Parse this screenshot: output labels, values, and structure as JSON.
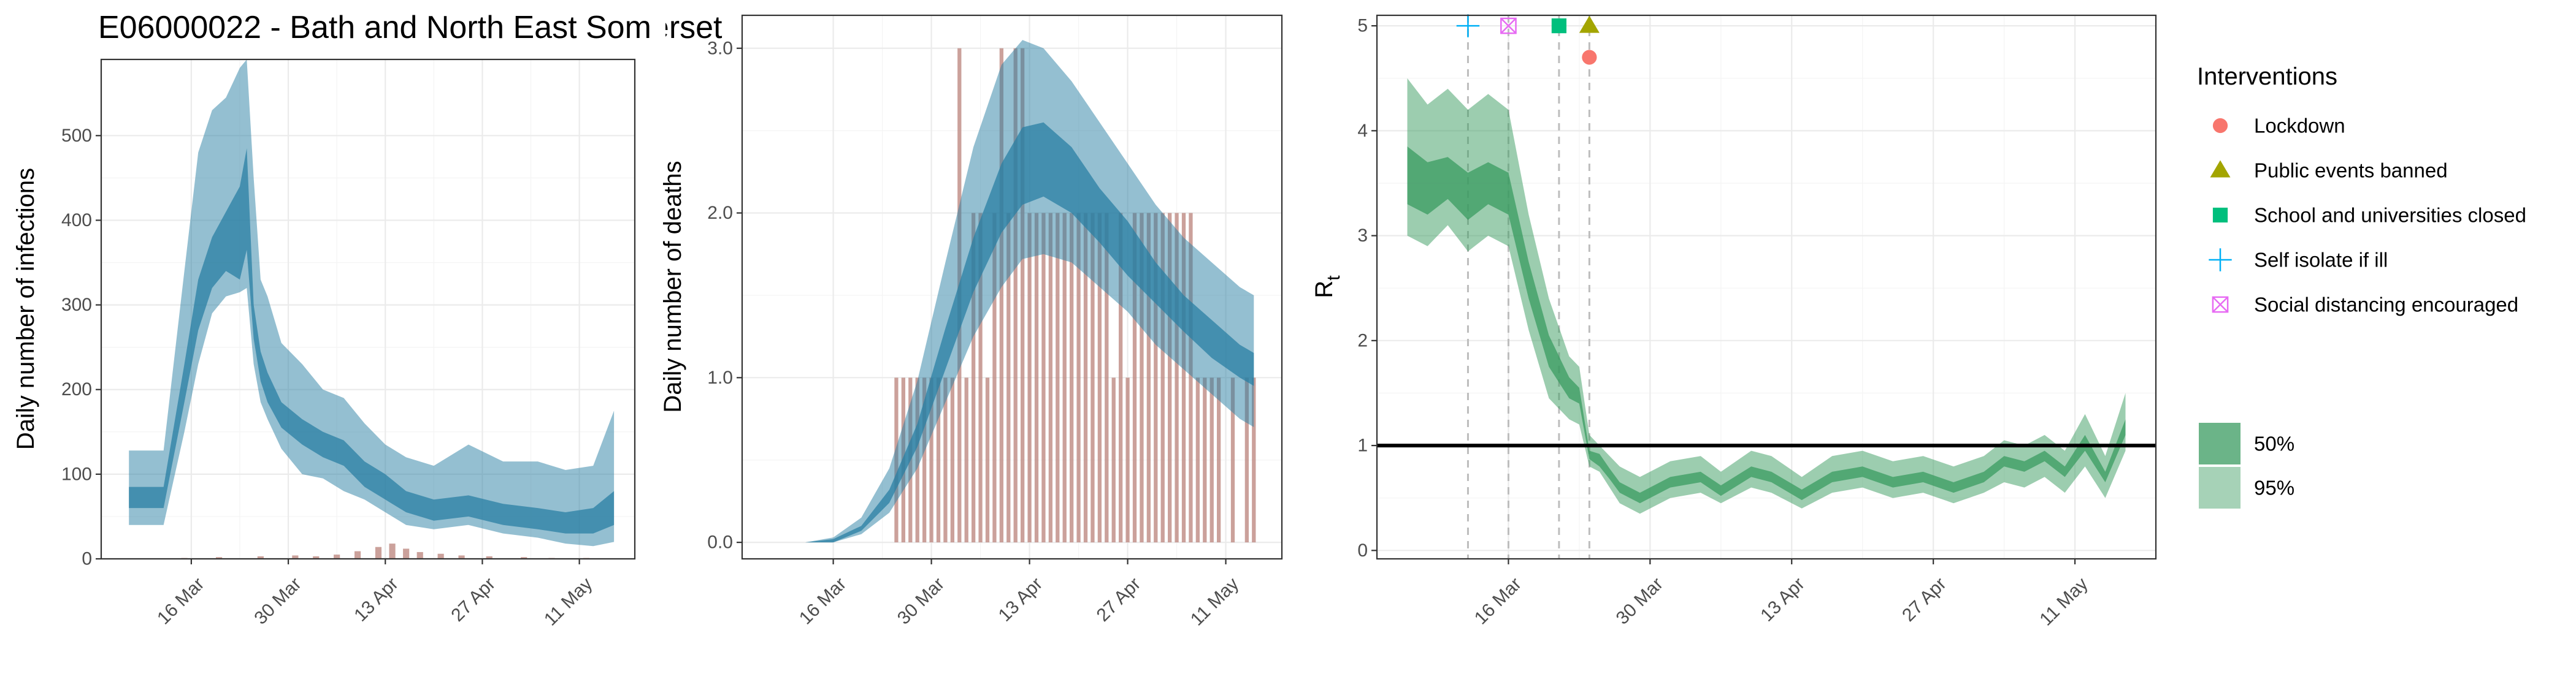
{
  "colors": {
    "infections_band": "#2a7fa3",
    "observed_bars": "#b9817a",
    "rt_band": "#3a9b60",
    "rt_threshold": "#000000",
    "lockdown": "#f8766d",
    "public_events": "#a3a500",
    "schools": "#00bf7d",
    "self_isolate": "#00b0f6",
    "social_distancing": "#e76bf3"
  },
  "chart_data": [
    {
      "type": "area",
      "title": "E06000022 - Bath and North East Somerset",
      "xlabel": "",
      "ylabel": "Daily number of infections",
      "x_axis": "date",
      "xlim": [
        "2020-03-03",
        "2020-05-19"
      ],
      "ylim": [
        0,
        590
      ],
      "xticks": [
        {
          "date": "2020-03-16",
          "label": "16 Mar"
        },
        {
          "date": "2020-03-30",
          "label": "30 Mar"
        },
        {
          "date": "2020-04-13",
          "label": "13 Apr"
        },
        {
          "date": "2020-04-27",
          "label": "27 Apr"
        },
        {
          "date": "2020-05-11",
          "label": "11 May"
        }
      ],
      "yticks": [
        0,
        100,
        200,
        300,
        400,
        500
      ],
      "ytick_labels": [
        "0",
        "100",
        "200",
        "300",
        "400",
        "500"
      ],
      "grid": true,
      "series": [
        {
          "kind": "band",
          "dates": [
            "2020-03-07",
            "2020-03-12",
            "2020-03-15",
            "2020-03-17",
            "2020-03-19",
            "2020-03-21",
            "2020-03-23",
            "2020-03-24",
            "2020-03-25",
            "2020-03-26",
            "2020-03-27",
            "2020-03-29",
            "2020-04-01",
            "2020-04-04",
            "2020-04-07",
            "2020-04-10",
            "2020-04-13",
            "2020-04-16",
            "2020-04-20",
            "2020-04-25",
            "2020-04-30",
            "2020-05-05",
            "2020-05-09",
            "2020-05-13",
            "2020-05-16"
          ],
          "upper_95": [
            128,
            128,
            340,
            480,
            530,
            545,
            580,
            590,
            450,
            330,
            310,
            255,
            230,
            200,
            190,
            160,
            135,
            120,
            110,
            135,
            115,
            115,
            105,
            110,
            175
          ],
          "lower_95": [
            40,
            40,
            150,
            230,
            290,
            310,
            315,
            320,
            230,
            185,
            165,
            130,
            100,
            95,
            80,
            70,
            55,
            40,
            35,
            40,
            30,
            25,
            18,
            15,
            20
          ],
          "upper_50": [
            85,
            85,
            230,
            330,
            380,
            410,
            440,
            485,
            300,
            245,
            220,
            185,
            165,
            150,
            140,
            115,
            100,
            80,
            70,
            75,
            65,
            60,
            55,
            60,
            80
          ],
          "lower_50": [
            60,
            60,
            185,
            270,
            320,
            340,
            330,
            365,
            260,
            210,
            185,
            155,
            135,
            120,
            110,
            85,
            70,
            55,
            45,
            50,
            40,
            35,
            30,
            30,
            40
          ]
        }
      ],
      "observed_cases": {
        "dates": [
          "2020-03-15",
          "2020-03-20",
          "2020-03-26",
          "2020-03-31",
          "2020-04-03",
          "2020-04-06",
          "2020-04-09",
          "2020-04-12",
          "2020-04-14",
          "2020-04-16",
          "2020-04-18",
          "2020-04-21",
          "2020-04-24",
          "2020-04-28",
          "2020-05-03",
          "2020-05-07",
          "2020-05-12"
        ],
        "values": [
          1,
          2,
          3,
          4,
          3,
          5,
          9,
          14,
          18,
          12,
          8,
          6,
          4,
          3,
          2,
          1,
          1
        ]
      }
    },
    {
      "type": "area",
      "title": "",
      "xlabel": "",
      "ylabel": "Daily number of deaths",
      "x_axis": "date",
      "xlim": [
        "2020-03-03",
        "2020-05-19"
      ],
      "ylim": [
        -0.1,
        3.2
      ],
      "xticks": [
        {
          "date": "2020-03-16",
          "label": "16 Mar"
        },
        {
          "date": "2020-03-30",
          "label": "30 Mar"
        },
        {
          "date": "2020-04-13",
          "label": "13 Apr"
        },
        {
          "date": "2020-04-27",
          "label": "27 Apr"
        },
        {
          "date": "2020-05-11",
          "label": "11 May"
        }
      ],
      "yticks": [
        0,
        1,
        2,
        3
      ],
      "ytick_labels": [
        "0.0",
        "1.0",
        "2.0",
        "3.0"
      ],
      "grid": true,
      "series": [
        {
          "kind": "band",
          "dates": [
            "2020-03-12",
            "2020-03-16",
            "2020-03-20",
            "2020-03-24",
            "2020-03-28",
            "2020-04-01",
            "2020-04-05",
            "2020-04-09",
            "2020-04-12",
            "2020-04-15",
            "2020-04-19",
            "2020-04-23",
            "2020-04-27",
            "2020-05-01",
            "2020-05-05",
            "2020-05-09",
            "2020-05-13",
            "2020-05-15"
          ],
          "upper_95": [
            0,
            0.03,
            0.15,
            0.45,
            0.98,
            1.7,
            2.4,
            2.9,
            3.05,
            3.0,
            2.8,
            2.55,
            2.3,
            2.05,
            1.85,
            1.7,
            1.55,
            1.5
          ],
          "lower_95": [
            0,
            0,
            0.05,
            0.18,
            0.45,
            0.85,
            1.25,
            1.55,
            1.72,
            1.75,
            1.7,
            1.55,
            1.4,
            1.2,
            1.05,
            0.9,
            0.75,
            0.7
          ],
          "upper_50": [
            0,
            0.02,
            0.1,
            0.32,
            0.72,
            1.3,
            1.85,
            2.3,
            2.52,
            2.55,
            2.4,
            2.15,
            1.95,
            1.7,
            1.5,
            1.35,
            1.2,
            1.15
          ],
          "lower_50": [
            0,
            0,
            0.07,
            0.24,
            0.58,
            1.05,
            1.52,
            1.88,
            2.05,
            2.1,
            2.0,
            1.82,
            1.62,
            1.45,
            1.28,
            1.12,
            1.0,
            0.95
          ]
        }
      ],
      "observed_deaths": {
        "dates": [
          "2020-03-25",
          "2020-03-26",
          "2020-03-27",
          "2020-03-28",
          "2020-03-29",
          "2020-03-30",
          "2020-03-31",
          "2020-04-01",
          "2020-04-02",
          "2020-04-03",
          "2020-04-04",
          "2020-04-05",
          "2020-04-06",
          "2020-04-07",
          "2020-04-08",
          "2020-04-09",
          "2020-04-10",
          "2020-04-11",
          "2020-04-12",
          "2020-04-13",
          "2020-04-14",
          "2020-04-15",
          "2020-04-16",
          "2020-04-17",
          "2020-04-18",
          "2020-04-19",
          "2020-04-20",
          "2020-04-21",
          "2020-04-22",
          "2020-04-23",
          "2020-04-24",
          "2020-04-25",
          "2020-04-26",
          "2020-04-27",
          "2020-04-28",
          "2020-04-29",
          "2020-04-30",
          "2020-05-01",
          "2020-05-02",
          "2020-05-03",
          "2020-05-04",
          "2020-05-05",
          "2020-05-06",
          "2020-05-07",
          "2020-05-08",
          "2020-05-09",
          "2020-05-10",
          "2020-05-11",
          "2020-05-12",
          "2020-05-13",
          "2020-05-14",
          "2020-05-15"
        ],
        "values": [
          1,
          1,
          1,
          1,
          1,
          1,
          1,
          1,
          1,
          3,
          1,
          2,
          2,
          1,
          2,
          3,
          2,
          3,
          3,
          2,
          2,
          2,
          2,
          2,
          2,
          2,
          2,
          2,
          2,
          2,
          2,
          1,
          2,
          1,
          2,
          2,
          2,
          2,
          2,
          2,
          2,
          2,
          2,
          1,
          1,
          1,
          1,
          0,
          1,
          0,
          1,
          1
        ]
      }
    },
    {
      "type": "area",
      "title": "",
      "xlabel": "",
      "ylabel": "R",
      "ylabel_subscript": "t",
      "x_axis": "date",
      "xlim": [
        "2020-03-03",
        "2020-05-19"
      ],
      "ylim": [
        -0.08,
        5.1
      ],
      "xticks": [
        {
          "date": "2020-03-16",
          "label": "16 Mar"
        },
        {
          "date": "2020-03-30",
          "label": "30 Mar"
        },
        {
          "date": "2020-04-13",
          "label": "13 Apr"
        },
        {
          "date": "2020-04-27",
          "label": "27 Apr"
        },
        {
          "date": "2020-05-11",
          "label": "11 May"
        }
      ],
      "yticks": [
        0,
        1,
        2,
        3,
        4,
        5
      ],
      "ytick_labels": [
        "0",
        "1",
        "2",
        "3",
        "4",
        "5"
      ],
      "grid": true,
      "reference_line": 1,
      "series": [
        {
          "kind": "band",
          "dates": [
            "2020-03-06",
            "2020-03-08",
            "2020-03-10",
            "2020-03-12",
            "2020-03-14",
            "2020-03-16",
            "2020-03-18",
            "2020-03-20",
            "2020-03-22",
            "2020-03-23",
            "2020-03-24",
            "2020-03-25",
            "2020-03-26",
            "2020-03-27",
            "2020-03-29",
            "2020-04-01",
            "2020-04-04",
            "2020-04-06",
            "2020-04-09",
            "2020-04-11",
            "2020-04-14",
            "2020-04-17",
            "2020-04-20",
            "2020-04-23",
            "2020-04-26",
            "2020-04-29",
            "2020-05-02",
            "2020-05-04",
            "2020-05-06",
            "2020-05-08",
            "2020-05-10",
            "2020-05-12",
            "2020-05-14",
            "2020-05-16"
          ],
          "upper_95": [
            4.5,
            4.25,
            4.4,
            4.2,
            4.35,
            4.2,
            3.2,
            2.4,
            1.85,
            1.75,
            1.1,
            1.0,
            0.9,
            0.8,
            0.7,
            0.85,
            0.9,
            0.75,
            0.95,
            0.9,
            0.7,
            0.9,
            0.95,
            0.85,
            0.9,
            0.8,
            0.9,
            1.05,
            1.0,
            1.1,
            0.95,
            1.3,
            0.9,
            1.5
          ],
          "lower_95": [
            3.0,
            2.9,
            3.1,
            2.85,
            3.0,
            2.9,
            2.1,
            1.45,
            1.25,
            1.2,
            0.8,
            0.75,
            0.6,
            0.45,
            0.35,
            0.5,
            0.55,
            0.45,
            0.6,
            0.55,
            0.4,
            0.55,
            0.6,
            0.5,
            0.55,
            0.45,
            0.55,
            0.65,
            0.6,
            0.7,
            0.55,
            0.8,
            0.5,
            0.95
          ],
          "upper_50": [
            3.85,
            3.7,
            3.75,
            3.6,
            3.7,
            3.6,
            2.75,
            2.05,
            1.65,
            1.55,
            0.95,
            0.92,
            0.78,
            0.65,
            0.55,
            0.7,
            0.75,
            0.62,
            0.8,
            0.75,
            0.58,
            0.75,
            0.8,
            0.7,
            0.75,
            0.65,
            0.75,
            0.9,
            0.85,
            0.95,
            0.8,
            1.1,
            0.75,
            1.25
          ],
          "lower_50": [
            3.3,
            3.2,
            3.35,
            3.15,
            3.3,
            3.2,
            2.4,
            1.75,
            1.45,
            1.4,
            0.87,
            0.8,
            0.68,
            0.55,
            0.45,
            0.6,
            0.65,
            0.52,
            0.7,
            0.65,
            0.48,
            0.65,
            0.7,
            0.6,
            0.65,
            0.55,
            0.65,
            0.8,
            0.75,
            0.85,
            0.7,
            0.95,
            0.65,
            1.1
          ]
        }
      ],
      "interventions": [
        {
          "label": "Lockdown",
          "date": "2020-03-24",
          "y": 4.7,
          "shape": "circle",
          "color_key": "lockdown"
        },
        {
          "label": "Public events banned",
          "date": "2020-03-24",
          "y": 5.0,
          "shape": "triangle",
          "color_key": "public_events"
        },
        {
          "label": "School and universities closed",
          "date": "2020-03-21",
          "y": 5.0,
          "shape": "square",
          "color_key": "schools"
        },
        {
          "label": "Self isolate if ill",
          "date": "2020-03-12",
          "y": 5.0,
          "shape": "plus",
          "color_key": "self_isolate"
        },
        {
          "label": "Social distancing encouraged",
          "date": "2020-03-16",
          "y": 5.0,
          "shape": "boxcross",
          "color_key": "social_distancing"
        }
      ]
    }
  ],
  "legend": {
    "title": "Interventions",
    "intervention_items": [
      {
        "label": "Lockdown",
        "shape": "circle",
        "color_key": "lockdown"
      },
      {
        "label": "Public events banned",
        "shape": "triangle",
        "color_key": "public_events"
      },
      {
        "label": "School and universities closed",
        "shape": "square",
        "color_key": "schools"
      },
      {
        "label": "Self isolate if ill",
        "shape": "plus",
        "color_key": "self_isolate"
      },
      {
        "label": "Social distancing encouraged",
        "shape": "boxcross",
        "color_key": "social_distancing"
      }
    ],
    "band_items": [
      {
        "label": "50%",
        "opacity": 0.75
      },
      {
        "label": "95%",
        "opacity": 0.45
      }
    ]
  }
}
